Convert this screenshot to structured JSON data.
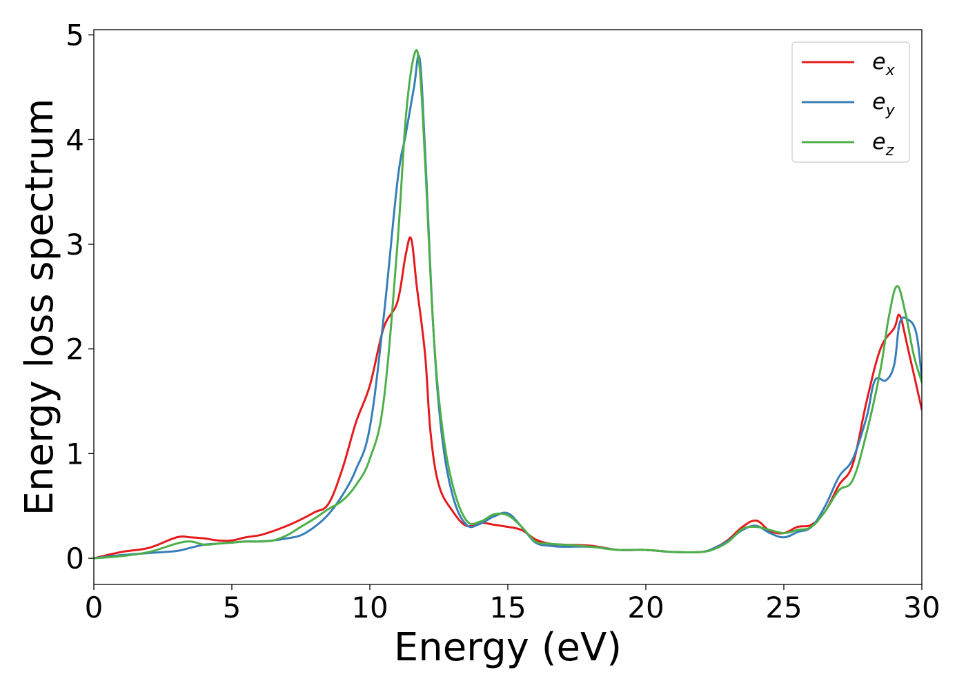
{
  "chart_data": {
    "type": "line",
    "xlabel": "Energy (eV)",
    "ylabel": "Energy loss spectrum",
    "xlim": [
      0,
      30
    ],
    "ylim": [
      -0.25,
      5.05
    ],
    "xticks": [
      0,
      5,
      10,
      15,
      20,
      25,
      30
    ],
    "yticks": [
      0,
      1,
      2,
      3,
      4,
      5
    ],
    "xtick_labels": [
      "0",
      "5",
      "10",
      "15",
      "20",
      "25",
      "30"
    ],
    "ytick_labels": [
      "0",
      "1",
      "2",
      "3",
      "4",
      "5"
    ],
    "grid": false,
    "legend_position": "top-right",
    "series": [
      {
        "name": "e_x",
        "label_base": "e",
        "label_sub": "x",
        "color": "#e41a1c",
        "x": [
          0,
          1,
          2,
          3,
          3.5,
          4,
          4.5,
          5,
          5.5,
          6,
          6.5,
          7,
          7.5,
          8,
          8.5,
          9,
          9.5,
          10,
          10.5,
          11,
          11.3,
          11.5,
          11.7,
          12,
          12.2,
          12.5,
          13,
          13.5,
          14,
          14.5,
          15,
          15.5,
          16,
          16.5,
          17,
          18,
          19,
          20,
          21,
          22,
          22.5,
          23,
          23.5,
          24,
          24.5,
          25,
          25.5,
          26,
          26.5,
          27,
          27.5,
          28,
          28.5,
          29,
          29.2,
          29.5,
          30
        ],
        "y": [
          0,
          0.06,
          0.1,
          0.2,
          0.2,
          0.19,
          0.17,
          0.17,
          0.2,
          0.22,
          0.26,
          0.31,
          0.37,
          0.44,
          0.52,
          0.85,
          1.3,
          1.65,
          2.2,
          2.45,
          2.9,
          3.05,
          2.6,
          1.95,
          1.2,
          0.7,
          0.45,
          0.31,
          0.34,
          0.32,
          0.3,
          0.27,
          0.18,
          0.14,
          0.13,
          0.12,
          0.08,
          0.08,
          0.06,
          0.06,
          0.1,
          0.18,
          0.3,
          0.36,
          0.26,
          0.24,
          0.3,
          0.32,
          0.45,
          0.7,
          0.9,
          1.5,
          2.0,
          2.2,
          2.32,
          2.0,
          1.42
        ]
      },
      {
        "name": "e_y",
        "label_base": "e",
        "label_sub": "y",
        "color": "#377eb8",
        "x": [
          0,
          1,
          2,
          3,
          3.5,
          4,
          4.5,
          5,
          5.5,
          6,
          6.5,
          7,
          7.5,
          8,
          8.5,
          9,
          9.5,
          10,
          10.5,
          11,
          11.3,
          11.6,
          11.8,
          12,
          12.3,
          12.6,
          13,
          13.5,
          14,
          14.5,
          15,
          15.5,
          16,
          16.5,
          17,
          18,
          19,
          20,
          21,
          22,
          22.5,
          23,
          23.5,
          24,
          24.5,
          25,
          25.5,
          26,
          26.5,
          27,
          27.5,
          28,
          28.3,
          28.7,
          29,
          29.2,
          29.5,
          29.8,
          30
        ],
        "y": [
          0,
          0.03,
          0.05,
          0.07,
          0.1,
          0.13,
          0.14,
          0.15,
          0.16,
          0.16,
          0.17,
          0.19,
          0.22,
          0.3,
          0.42,
          0.6,
          0.85,
          1.25,
          2.3,
          3.6,
          4.05,
          4.5,
          4.78,
          3.9,
          2.2,
          1.2,
          0.6,
          0.32,
          0.33,
          0.4,
          0.43,
          0.3,
          0.15,
          0.12,
          0.11,
          0.11,
          0.08,
          0.08,
          0.06,
          0.06,
          0.1,
          0.17,
          0.27,
          0.31,
          0.24,
          0.2,
          0.25,
          0.3,
          0.5,
          0.78,
          0.95,
          1.35,
          1.7,
          1.7,
          1.85,
          2.25,
          2.28,
          2.15,
          1.72
        ]
      },
      {
        "name": "e_z",
        "label_base": "e",
        "label_sub": "z",
        "color": "#4daf4a",
        "x": [
          0,
          1,
          2,
          3,
          3.5,
          4,
          4.5,
          5,
          5.5,
          6,
          6.5,
          7,
          7.5,
          8,
          8.5,
          9,
          9.5,
          10,
          10.5,
          11,
          11.3,
          11.6,
          11.8,
          12,
          12.3,
          12.6,
          13,
          13.5,
          14,
          14.5,
          15,
          15.5,
          16,
          16.5,
          17,
          18,
          19,
          20,
          21,
          22,
          22.5,
          23,
          23.5,
          24,
          24.5,
          25,
          25.5,
          26,
          26.5,
          27,
          27.5,
          28,
          28.5,
          28.8,
          29.1,
          29.4,
          29.7,
          30
        ],
        "y": [
          0,
          0.02,
          0.06,
          0.14,
          0.16,
          0.13,
          0.14,
          0.15,
          0.16,
          0.16,
          0.17,
          0.22,
          0.3,
          0.38,
          0.47,
          0.55,
          0.7,
          0.95,
          1.5,
          3.0,
          4.2,
          4.8,
          4.7,
          3.8,
          2.2,
          1.3,
          0.7,
          0.36,
          0.35,
          0.42,
          0.41,
          0.3,
          0.16,
          0.14,
          0.13,
          0.11,
          0.08,
          0.08,
          0.06,
          0.06,
          0.09,
          0.16,
          0.28,
          0.3,
          0.27,
          0.24,
          0.27,
          0.3,
          0.45,
          0.65,
          0.75,
          1.2,
          1.8,
          2.3,
          2.6,
          2.35,
          1.95,
          1.68
        ]
      }
    ]
  }
}
